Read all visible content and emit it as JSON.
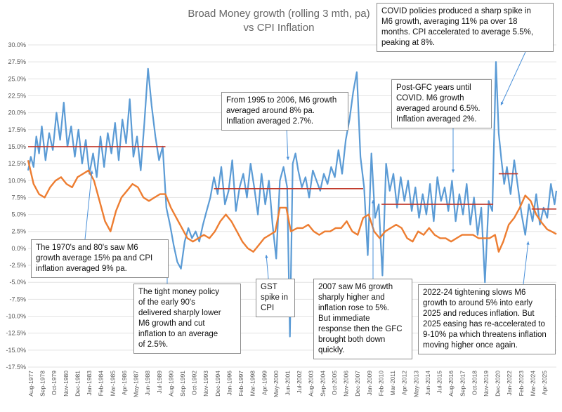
{
  "chart_data": {
    "type": "line",
    "title": [
      "Broad Money growth (rolling 3 mth, pa)",
      "vs CPI Inflation"
    ],
    "ylim": [
      -17.5,
      30
    ],
    "yticks": [
      "30.0%",
      "27.5%",
      "25.0%",
      "22.5%",
      "20.0%",
      "17.5%",
      "15.0%",
      "12.5%",
      "10.0%",
      "7.5%",
      "5.0%",
      "2.5%",
      "0.0%",
      "-2.5%",
      "-5.0%",
      "-7.5%",
      "-10.0%",
      "-12.5%",
      "-15.0%",
      "-17.5%"
    ],
    "x_range": [
      "1977-08",
      "2025-09"
    ],
    "xtick_labels": [
      "Aug-1977",
      "Sep-1978",
      "Oct-1979",
      "Nov-1980",
      "Dec-1981",
      "Jan-1983",
      "Feb-1984",
      "Mar-1985",
      "Apr-1986",
      "May-1987",
      "Jun-1988",
      "Jul-1989",
      "Aug-1990",
      "Sep-1991",
      "Oct-1992",
      "Nov-1993",
      "Dec-1994",
      "Jan-1996",
      "Feb-1997",
      "Mar-1998",
      "Apr-1999",
      "May-2000",
      "Jun-2001",
      "Jul-2002",
      "Aug-2003",
      "Sep-2004",
      "Oct-2005",
      "Nov-2006",
      "Dec-2007",
      "Jan-2009",
      "Feb-2010",
      "Mar-2011",
      "Apr-2012",
      "May-2013",
      "Jun-2014",
      "Jul-2015",
      "Aug-2016",
      "Sep-2017",
      "Oct-2018",
      "Nov-2019",
      "Dec-2020",
      "Jan-2022",
      "Feb-2023",
      "Mar-2024",
      "Apr-2025"
    ],
    "colors": {
      "m6": "#5b9bd5",
      "cpi": "#ed7d31",
      "avg": "#c0392b"
    },
    "series": [
      {
        "key": "m6",
        "points": [
          [
            "1977-08",
            11.5
          ],
          [
            "1977-11",
            13.5
          ],
          [
            "1978-02",
            12.0
          ],
          [
            "1978-05",
            16.5
          ],
          [
            "1978-08",
            14.0
          ],
          [
            "1978-11",
            18.0
          ],
          [
            "1979-03",
            13.0
          ],
          [
            "1979-07",
            17.0
          ],
          [
            "1979-11",
            14.5
          ],
          [
            "1980-03",
            20.0
          ],
          [
            "1980-07",
            16.0
          ],
          [
            "1980-11",
            21.5
          ],
          [
            "1981-03",
            15.0
          ],
          [
            "1981-07",
            18.0
          ],
          [
            "1981-11",
            13.5
          ],
          [
            "1982-03",
            17.5
          ],
          [
            "1982-07",
            12.5
          ],
          [
            "1982-11",
            16.0
          ],
          [
            "1983-03",
            11.0
          ],
          [
            "1983-07",
            14.0
          ],
          [
            "1983-11",
            10.5
          ],
          [
            "1984-03",
            16.5
          ],
          [
            "1984-07",
            12.0
          ],
          [
            "1984-11",
            17.0
          ],
          [
            "1985-03",
            14.0
          ],
          [
            "1985-07",
            18.5
          ],
          [
            "1985-11",
            13.0
          ],
          [
            "1986-03",
            19.0
          ],
          [
            "1986-07",
            15.5
          ],
          [
            "1986-11",
            22.0
          ],
          [
            "1987-03",
            13.5
          ],
          [
            "1987-07",
            16.5
          ],
          [
            "1987-11",
            11.5
          ],
          [
            "1988-03",
            18.5
          ],
          [
            "1988-07",
            26.5
          ],
          [
            "1988-11",
            21.0
          ],
          [
            "1989-03",
            16.5
          ],
          [
            "1989-07",
            13.0
          ],
          [
            "1989-11",
            15.0
          ],
          [
            "1990-03",
            6.0
          ],
          [
            "1990-07",
            3.5
          ],
          [
            "1990-11",
            0.5
          ],
          [
            "1991-03",
            -2.0
          ],
          [
            "1991-07",
            -3.0
          ],
          [
            "1991-11",
            1.0
          ],
          [
            "1992-03",
            3.0
          ],
          [
            "1992-07",
            1.5
          ],
          [
            "1992-11",
            2.5
          ],
          [
            "1993-03",
            1.0
          ],
          [
            "1993-07",
            3.5
          ],
          [
            "1993-11",
            5.5
          ],
          [
            "1994-03",
            7.5
          ],
          [
            "1994-07",
            10.5
          ],
          [
            "1994-11",
            8.0
          ],
          [
            "1995-03",
            12.0
          ],
          [
            "1995-07",
            6.5
          ],
          [
            "1995-11",
            8.5
          ],
          [
            "1996-03",
            13.0
          ],
          [
            "1996-07",
            5.5
          ],
          [
            "1996-11",
            9.0
          ],
          [
            "1997-03",
            11.0
          ],
          [
            "1997-07",
            7.5
          ],
          [
            "1997-11",
            12.5
          ],
          [
            "1998-03",
            9.0
          ],
          [
            "1998-07",
            5.0
          ],
          [
            "1998-11",
            11.0
          ],
          [
            "1999-03",
            6.5
          ],
          [
            "1999-07",
            10.0
          ],
          [
            "1999-11",
            3.5
          ],
          [
            "2000-03",
            -1.5
          ],
          [
            "2000-07",
            10.0
          ],
          [
            "2000-11",
            12.0
          ],
          [
            "2001-03",
            9.0
          ],
          [
            "2001-06",
            -13.0
          ],
          [
            "2001-09",
            12.5
          ],
          [
            "2001-12",
            14.0
          ],
          [
            "2002-03",
            11.5
          ],
          [
            "2002-07",
            9.0
          ],
          [
            "2002-11",
            10.5
          ],
          [
            "2003-03",
            7.5
          ],
          [
            "2003-07",
            11.5
          ],
          [
            "2003-11",
            10.0
          ],
          [
            "2004-03",
            8.5
          ],
          [
            "2004-07",
            11.0
          ],
          [
            "2004-11",
            9.5
          ],
          [
            "2005-03",
            12.0
          ],
          [
            "2005-07",
            10.5
          ],
          [
            "2005-11",
            14.5
          ],
          [
            "2006-03",
            11.0
          ],
          [
            "2006-07",
            16.0
          ],
          [
            "2006-11",
            19.0
          ],
          [
            "2007-03",
            23.0
          ],
          [
            "2007-07",
            26.0
          ],
          [
            "2007-11",
            13.5
          ],
          [
            "2008-03",
            9.0
          ],
          [
            "2008-07",
            -1.0
          ],
          [
            "2008-11",
            14.0
          ],
          [
            "2009-03",
            4.5
          ],
          [
            "2009-07",
            6.5
          ],
          [
            "2009-11",
            -4.0
          ],
          [
            "2010-03",
            12.5
          ],
          [
            "2010-07",
            8.5
          ],
          [
            "2010-11",
            11.0
          ],
          [
            "2011-03",
            6.0
          ],
          [
            "2011-07",
            10.5
          ],
          [
            "2011-11",
            7.0
          ],
          [
            "2012-03",
            10.0
          ],
          [
            "2012-07",
            5.5
          ],
          [
            "2012-11",
            9.0
          ],
          [
            "2013-03",
            4.5
          ],
          [
            "2013-07",
            8.0
          ],
          [
            "2013-11",
            5.0
          ],
          [
            "2014-03",
            9.5
          ],
          [
            "2014-07",
            4.0
          ],
          [
            "2014-11",
            10.5
          ],
          [
            "2015-03",
            7.0
          ],
          [
            "2015-07",
            9.0
          ],
          [
            "2015-11",
            5.5
          ],
          [
            "2016-03",
            10.0
          ],
          [
            "2016-07",
            4.0
          ],
          [
            "2016-11",
            8.0
          ],
          [
            "2017-03",
            5.0
          ],
          [
            "2017-07",
            9.5
          ],
          [
            "2017-11",
            3.5
          ],
          [
            "2018-03",
            7.5
          ],
          [
            "2018-07",
            2.0
          ],
          [
            "2018-11",
            6.0
          ],
          [
            "2019-03",
            -5.0
          ],
          [
            "2019-07",
            7.0
          ],
          [
            "2019-11",
            5.5
          ],
          [
            "2020-03",
            27.5
          ],
          [
            "2020-06",
            17.0
          ],
          [
            "2020-09",
            13.0
          ],
          [
            "2020-12",
            9.5
          ],
          [
            "2021-03",
            12.0
          ],
          [
            "2021-07",
            8.0
          ],
          [
            "2021-11",
            13.0
          ],
          [
            "2022-03",
            9.0
          ],
          [
            "2022-07",
            5.0
          ],
          [
            "2022-11",
            2.0
          ],
          [
            "2023-03",
            6.5
          ],
          [
            "2023-07",
            4.0
          ],
          [
            "2023-11",
            8.0
          ],
          [
            "2024-03",
            3.5
          ],
          [
            "2024-07",
            6.0
          ],
          [
            "2024-11",
            4.5
          ],
          [
            "2025-03",
            9.5
          ],
          [
            "2025-07",
            6.5
          ],
          [
            "2025-09",
            8.5
          ]
        ]
      },
      {
        "key": "cpi",
        "points": [
          [
            "1977-08",
            13.0
          ],
          [
            "1978-02",
            9.5
          ],
          [
            "1978-08",
            8.0
          ],
          [
            "1979-02",
            7.5
          ],
          [
            "1979-08",
            9.0
          ],
          [
            "1980-02",
            10.0
          ],
          [
            "1980-08",
            10.5
          ],
          [
            "1981-02",
            9.5
          ],
          [
            "1981-08",
            9.0
          ],
          [
            "1982-02",
            10.5
          ],
          [
            "1982-08",
            11.0
          ],
          [
            "1983-02",
            11.5
          ],
          [
            "1983-08",
            10.0
          ],
          [
            "1984-02",
            7.0
          ],
          [
            "1984-08",
            4.0
          ],
          [
            "1985-02",
            2.5
          ],
          [
            "1985-08",
            5.5
          ],
          [
            "1986-02",
            7.5
          ],
          [
            "1986-08",
            8.5
          ],
          [
            "1987-02",
            9.5
          ],
          [
            "1987-08",
            9.0
          ],
          [
            "1988-02",
            7.5
          ],
          [
            "1988-08",
            7.0
          ],
          [
            "1989-02",
            7.5
          ],
          [
            "1989-08",
            8.0
          ],
          [
            "1990-02",
            8.0
          ],
          [
            "1990-08",
            6.0
          ],
          [
            "1991-02",
            4.5
          ],
          [
            "1991-08",
            3.0
          ],
          [
            "1992-02",
            1.5
          ],
          [
            "1992-08",
            1.0
          ],
          [
            "1993-02",
            1.5
          ],
          [
            "1993-08",
            2.0
          ],
          [
            "1994-02",
            1.5
          ],
          [
            "1994-08",
            2.5
          ],
          [
            "1995-02",
            4.0
          ],
          [
            "1995-08",
            5.0
          ],
          [
            "1996-02",
            4.0
          ],
          [
            "1996-08",
            2.5
          ],
          [
            "1997-02",
            1.0
          ],
          [
            "1997-08",
            0.0
          ],
          [
            "1998-02",
            -0.5
          ],
          [
            "1998-08",
            0.5
          ],
          [
            "1999-02",
            1.5
          ],
          [
            "1999-08",
            2.0
          ],
          [
            "2000-02",
            2.5
          ],
          [
            "2000-07",
            6.0
          ],
          [
            "2001-02",
            6.0
          ],
          [
            "2001-07",
            2.5
          ],
          [
            "2002-02",
            3.0
          ],
          [
            "2002-08",
            3.0
          ],
          [
            "2003-02",
            3.5
          ],
          [
            "2003-08",
            2.5
          ],
          [
            "2004-02",
            2.0
          ],
          [
            "2004-08",
            2.5
          ],
          [
            "2005-02",
            2.5
          ],
          [
            "2005-08",
            3.0
          ],
          [
            "2006-02",
            3.0
          ],
          [
            "2006-08",
            4.0
          ],
          [
            "2007-02",
            2.5
          ],
          [
            "2007-08",
            2.0
          ],
          [
            "2008-02",
            4.5
          ],
          [
            "2008-08",
            5.0
          ],
          [
            "2009-02",
            2.5
          ],
          [
            "2009-08",
            1.5
          ],
          [
            "2010-02",
            2.5
          ],
          [
            "2010-08",
            3.0
          ],
          [
            "2011-02",
            3.5
          ],
          [
            "2011-08",
            3.0
          ],
          [
            "2012-02",
            1.5
          ],
          [
            "2012-08",
            1.0
          ],
          [
            "2013-02",
            2.5
          ],
          [
            "2013-08",
            2.0
          ],
          [
            "2014-02",
            3.0
          ],
          [
            "2014-08",
            2.0
          ],
          [
            "2015-02",
            1.5
          ],
          [
            "2015-08",
            1.5
          ],
          [
            "2016-02",
            1.0
          ],
          [
            "2016-08",
            1.5
          ],
          [
            "2017-02",
            2.0
          ],
          [
            "2017-08",
            2.0
          ],
          [
            "2018-02",
            2.0
          ],
          [
            "2018-08",
            1.5
          ],
          [
            "2019-02",
            1.5
          ],
          [
            "2019-08",
            1.5
          ],
          [
            "2020-02",
            2.0
          ],
          [
            "2020-06",
            -0.5
          ],
          [
            "2020-11",
            1.0
          ],
          [
            "2021-05",
            3.5
          ],
          [
            "2021-11",
            4.5
          ],
          [
            "2022-05",
            6.0
          ],
          [
            "2022-11",
            7.8
          ],
          [
            "2023-05",
            7.0
          ],
          [
            "2023-11",
            5.0
          ],
          [
            "2024-05",
            3.8
          ],
          [
            "2024-11",
            2.8
          ],
          [
            "2025-05",
            2.4
          ],
          [
            "2025-09",
            2.1
          ]
        ]
      }
    ],
    "average_lines": [
      {
        "from": "1977-08",
        "to": "1990-02",
        "value": 15.0
      },
      {
        "from": "1994-07",
        "to": "2008-02",
        "value": 8.8
      },
      {
        "from": "2009-10",
        "to": "2019-12",
        "value": 6.5
      },
      {
        "from": "2020-06",
        "to": "2022-03",
        "value": 11.0
      },
      {
        "from": "2023-06",
        "to": "2025-09",
        "value": 5.8
      }
    ],
    "annotations": [
      {
        "id": "ann-1970s",
        "text": "The 1970's and 80's saw M6\ngrowth average 15% pa and CPI\ninflation averaged 9% pa."
      },
      {
        "id": "ann-tight-money",
        "text": "The tight money policy\nof the early 90's\ndelivered sharply lower\nM6 growth and cut\ninflation to an average\nof 2.5%."
      },
      {
        "id": "ann-gst",
        "text": "GST\nspike in\nCPI"
      },
      {
        "id": "ann-1995",
        "text": "From 1995 to 2006, M6 growth\naveraged around 8% pa.\nInflation averaged 2.7%."
      },
      {
        "id": "ann-2007",
        "text": "2007 saw M6 growth\nsharply higher and\ninflation rose to 5%.\nBut immediate\nresponse then the GFC\nbrought both down\nquickly."
      },
      {
        "id": "ann-post-gfc",
        "text": "Post-GFC years until\nCOVID. M6 growth\naveraged around 6.5%.\nInflation averaged 2%."
      },
      {
        "id": "ann-covid",
        "text": "COVID policies produced a sharp spike in\nM6 growth, averaging 11% pa over 18\nmonths. CPI accelerated to average 5.5%,\npeaking at 8%."
      },
      {
        "id": "ann-2022",
        "text": "2022-24 tightening slows M6\ngrowth to around 5% into early\n2025 and reduces inflation. But\n2025 easing has re-accelerated to\n9-10% pa which threatens inflation\nmoving higher once again."
      }
    ]
  }
}
